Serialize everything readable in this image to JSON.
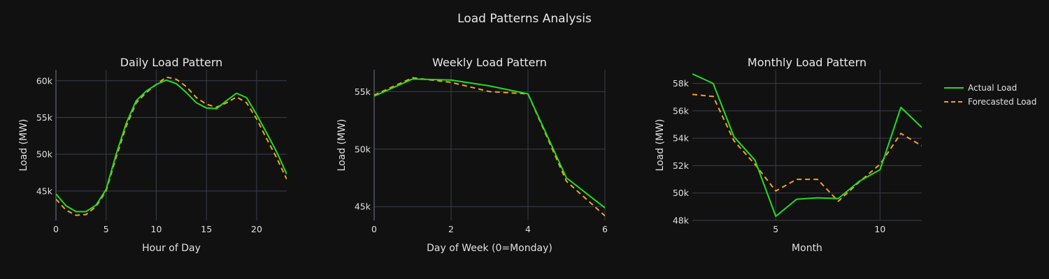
{
  "title": "Load Patterns Analysis",
  "colors": {
    "actual": "#22dd22",
    "forecast": "#f5a31a",
    "background": "#111111"
  },
  "legend": {
    "placement": "right",
    "items": [
      "Actual Load",
      "Forecasted Load"
    ]
  },
  "chart_data": [
    {
      "type": "line",
      "title": "Daily Load Pattern",
      "xlabel": "Hour of Day",
      "ylabel": "Load (MW)",
      "xlim": [
        0,
        23
      ],
      "ylim": [
        41000,
        61500
      ],
      "xticks": [
        0,
        5,
        10,
        15,
        20
      ],
      "xtick_labels": [
        "0",
        "5",
        "10",
        "15",
        "20"
      ],
      "yticks": [
        45000,
        50000,
        55000,
        60000
      ],
      "ytick_labels": [
        "45k",
        "50k",
        "55k",
        "60k"
      ],
      "grid": true,
      "x": [
        0,
        1,
        2,
        3,
        4,
        5,
        6,
        7,
        8,
        9,
        10,
        11,
        12,
        13,
        14,
        15,
        16,
        17,
        18,
        19,
        20,
        21,
        22,
        23
      ],
      "series": [
        {
          "name": "Actual Load",
          "values": [
            44600,
            43000,
            42200,
            42200,
            43100,
            45200,
            50000,
            54200,
            57300,
            58600,
            59500,
            60100,
            59600,
            58400,
            57000,
            56300,
            56200,
            57300,
            58300,
            57700,
            55400,
            52900,
            50300,
            47300
          ]
        },
        {
          "name": "Forecasted Load",
          "values": [
            43900,
            42400,
            41700,
            41800,
            42900,
            45000,
            49600,
            53800,
            57000,
            58400,
            59500,
            60500,
            60200,
            59200,
            57700,
            56800,
            56400,
            57000,
            57800,
            57000,
            54800,
            52100,
            49500,
            46600
          ]
        }
      ]
    },
    {
      "type": "line",
      "title": "Weekly Load Pattern",
      "xlabel": "Day of Week (0=Monday)",
      "ylabel": "Load (MW)",
      "xlim": [
        0,
        6
      ],
      "ylim": [
        43800,
        56900
      ],
      "xticks": [
        0,
        2,
        4,
        6
      ],
      "xtick_labels": [
        "0",
        "2",
        "4",
        "6"
      ],
      "yticks": [
        45000,
        50000,
        55000
      ],
      "ytick_labels": [
        "45k",
        "50k",
        "55k"
      ],
      "grid": true,
      "x": [
        0,
        1,
        2,
        3,
        4,
        5,
        6
      ],
      "series": [
        {
          "name": "Actual Load",
          "values": [
            54600,
            56100,
            56000,
            55500,
            54800,
            47500,
            44900
          ]
        },
        {
          "name": "Forecasted Load",
          "values": [
            54700,
            56200,
            55800,
            55000,
            54800,
            47200,
            44200
          ]
        }
      ]
    },
    {
      "type": "line",
      "title": "Monthly Load Pattern",
      "xlabel": "Month",
      "ylabel": "Load (MW)",
      "xlim": [
        1,
        12
      ],
      "ylim": [
        48000,
        59000
      ],
      "xticks": [
        5,
        10
      ],
      "xtick_labels": [
        "5",
        "10"
      ],
      "yticks": [
        48000,
        50000,
        52000,
        54000,
        56000,
        58000
      ],
      "ytick_labels": [
        "48k",
        "50k",
        "52k",
        "54k",
        "56k",
        "58k"
      ],
      "grid": true,
      "x": [
        1,
        2,
        3,
        4,
        5,
        6,
        7,
        8,
        9,
        10,
        11,
        12
      ],
      "series": [
        {
          "name": "Actual Load",
          "values": [
            58700,
            58000,
            54100,
            52400,
            48300,
            49550,
            49650,
            49600,
            50850,
            51700,
            56250,
            54800
          ]
        },
        {
          "name": "Forecasted Load",
          "values": [
            57200,
            57050,
            53800,
            52100,
            50150,
            51000,
            51000,
            49400,
            50800,
            52100,
            54350,
            53450
          ]
        }
      ]
    }
  ]
}
